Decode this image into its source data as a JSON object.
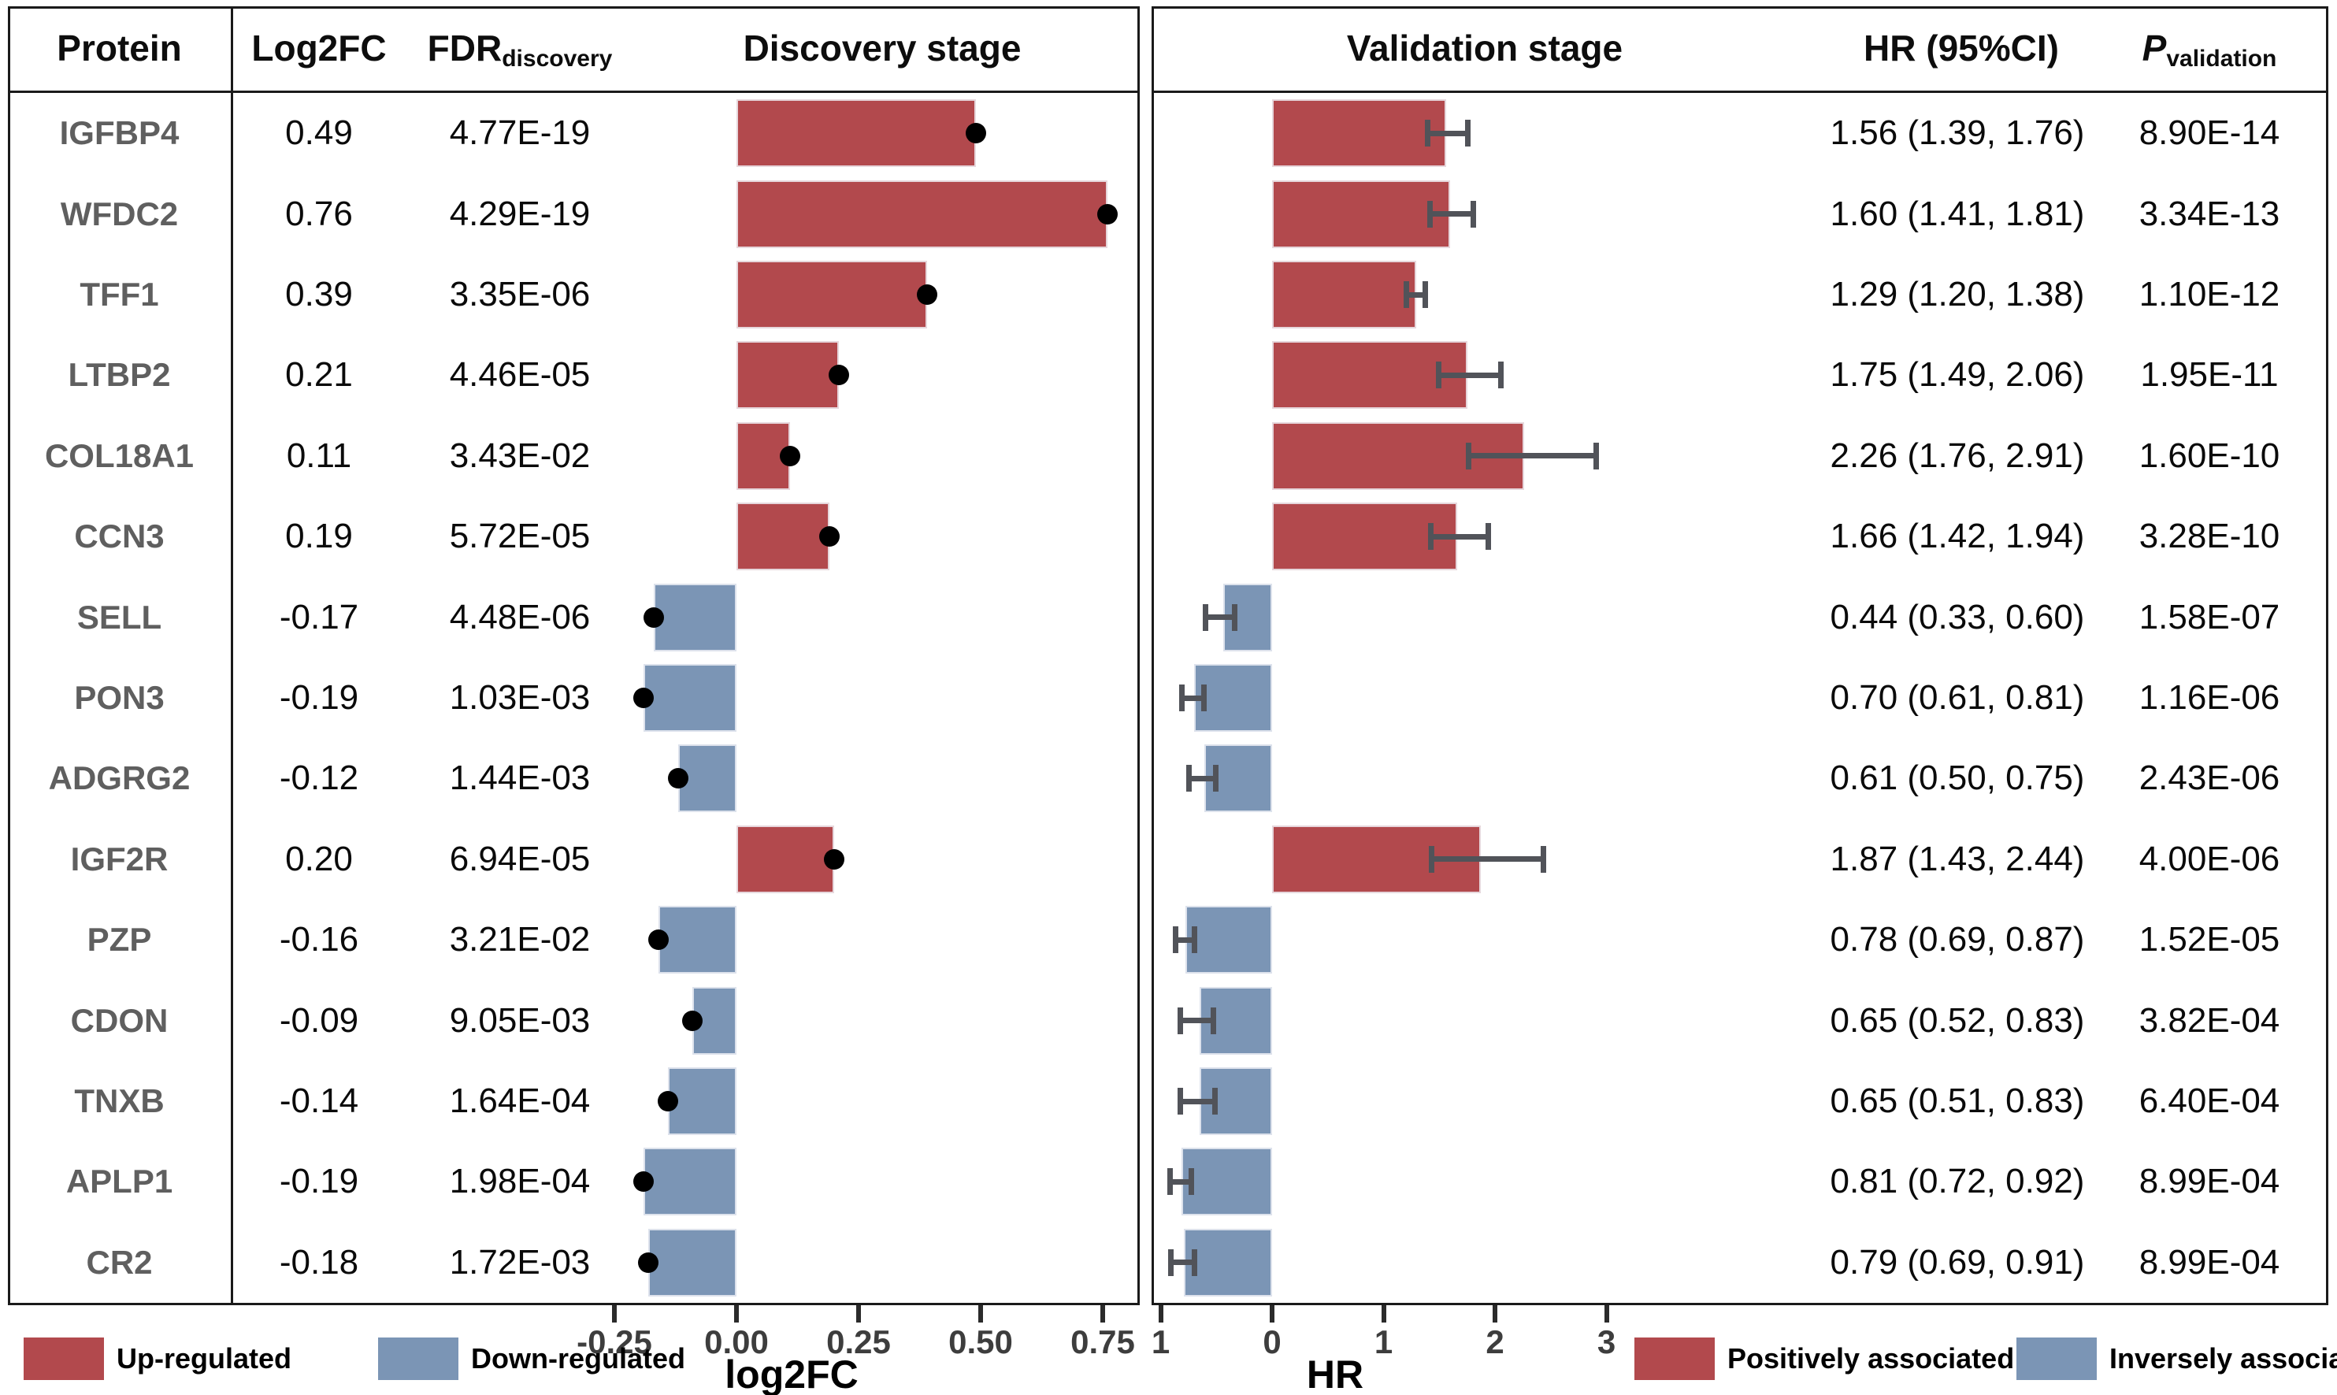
{
  "header": {
    "protein": "Protein",
    "log2fc": "Log2FC",
    "fdr_base": "FDR",
    "fdr_sub": "discovery",
    "discovery": "Discovery stage",
    "validation": "Validation stage",
    "hr_ci": "HR (95%CI)",
    "p_base": "P",
    "p_sub": "validation"
  },
  "colors": {
    "up_bar": "#b2494d",
    "down_bar": "#7b95b5",
    "dot": "#000000",
    "whisker": "#515359",
    "panel_border": "#1a1a1a",
    "protein_text": "#5f5f5f",
    "value_text": "#0a0a0a",
    "tick_text": "#3d3d3d"
  },
  "rows": [
    {
      "protein": "IGFBP4",
      "log2fc": 0.49,
      "log2fc_text": "0.49",
      "fdr": "4.77E-19",
      "hr": 1.56,
      "ci_low": 1.39,
      "ci_high": 1.76,
      "hr_ci_text": "1.56 (1.39, 1.76)",
      "p": "8.90E-14"
    },
    {
      "protein": "WFDC2",
      "log2fc": 0.76,
      "log2fc_text": "0.76",
      "fdr": "4.29E-19",
      "hr": 1.6,
      "ci_low": 1.41,
      "ci_high": 1.81,
      "hr_ci_text": "1.60 (1.41, 1.81)",
      "p": "3.34E-13"
    },
    {
      "protein": "TFF1",
      "log2fc": 0.39,
      "log2fc_text": "0.39",
      "fdr": "3.35E-06",
      "hr": 1.29,
      "ci_low": 1.2,
      "ci_high": 1.38,
      "hr_ci_text": "1.29 (1.20, 1.38)",
      "p": "1.10E-12"
    },
    {
      "protein": "LTBP2",
      "log2fc": 0.21,
      "log2fc_text": "0.21",
      "fdr": "4.46E-05",
      "hr": 1.75,
      "ci_low": 1.49,
      "ci_high": 2.06,
      "hr_ci_text": "1.75 (1.49, 2.06)",
      "p": "1.95E-11"
    },
    {
      "protein": "COL18A1",
      "log2fc": 0.11,
      "log2fc_text": "0.11",
      "fdr": "3.43E-02",
      "hr": 2.26,
      "ci_low": 1.76,
      "ci_high": 2.91,
      "hr_ci_text": "2.26 (1.76, 2.91)",
      "p": "1.60E-10"
    },
    {
      "protein": "CCN3",
      "log2fc": 0.19,
      "log2fc_text": "0.19",
      "fdr": "5.72E-05",
      "hr": 1.66,
      "ci_low": 1.42,
      "ci_high": 1.94,
      "hr_ci_text": "1.66 (1.42, 1.94)",
      "p": "3.28E-10"
    },
    {
      "protein": "SELL",
      "log2fc": -0.17,
      "log2fc_text": "-0.17",
      "fdr": "4.48E-06",
      "hr": 0.44,
      "ci_low": 0.33,
      "ci_high": 0.6,
      "hr_ci_text": "0.44 (0.33, 0.60)",
      "p": "1.58E-07"
    },
    {
      "protein": "PON3",
      "log2fc": -0.19,
      "log2fc_text": "-0.19",
      "fdr": "1.03E-03",
      "hr": 0.7,
      "ci_low": 0.61,
      "ci_high": 0.81,
      "hr_ci_text": "0.70 (0.61, 0.81)",
      "p": "1.16E-06"
    },
    {
      "protein": "ADGRG2",
      "log2fc": -0.12,
      "log2fc_text": "-0.12",
      "fdr": "1.44E-03",
      "hr": 0.61,
      "ci_low": 0.5,
      "ci_high": 0.75,
      "hr_ci_text": "0.61 (0.50, 0.75)",
      "p": "2.43E-06"
    },
    {
      "protein": "IGF2R",
      "log2fc": 0.2,
      "log2fc_text": "0.20",
      "fdr": "6.94E-05",
      "hr": 1.87,
      "ci_low": 1.43,
      "ci_high": 2.44,
      "hr_ci_text": "1.87 (1.43, 2.44)",
      "p": "4.00E-06"
    },
    {
      "protein": "PZP",
      "log2fc": -0.16,
      "log2fc_text": "-0.16",
      "fdr": "3.21E-02",
      "hr": 0.78,
      "ci_low": 0.69,
      "ci_high": 0.87,
      "hr_ci_text": "0.78 (0.69, 0.87)",
      "p": "1.52E-05"
    },
    {
      "protein": "CDON",
      "log2fc": -0.09,
      "log2fc_text": "-0.09",
      "fdr": "9.05E-03",
      "hr": 0.65,
      "ci_low": 0.52,
      "ci_high": 0.83,
      "hr_ci_text": "0.65 (0.52, 0.83)",
      "p": "3.82E-04"
    },
    {
      "protein": "TNXB",
      "log2fc": -0.14,
      "log2fc_text": "-0.14",
      "fdr": "1.64E-04",
      "hr": 0.65,
      "ci_low": 0.51,
      "ci_high": 0.83,
      "hr_ci_text": "0.65 (0.51, 0.83)",
      "p": "6.40E-04"
    },
    {
      "protein": "APLP1",
      "log2fc": -0.19,
      "log2fc_text": "-0.19",
      "fdr": "1.98E-04",
      "hr": 0.81,
      "ci_low": 0.72,
      "ci_high": 0.92,
      "hr_ci_text": "0.81 (0.72, 0.92)",
      "p": "8.99E-04"
    },
    {
      "protein": "CR2",
      "log2fc": -0.18,
      "log2fc_text": "-0.18",
      "fdr": "1.72E-03",
      "hr": 0.79,
      "ci_low": 0.69,
      "ci_high": 0.91,
      "hr_ci_text": "0.79 (0.69, 0.91)",
      "p": "8.99E-04"
    }
  ],
  "axes": {
    "log2fc": {
      "title": "log2FC",
      "ticks": [
        {
          "value": -0.25,
          "label": "-0.25"
        },
        {
          "value": 0,
          "label": "0.00"
        },
        {
          "value": 0.25,
          "label": "0.25"
        },
        {
          "value": 0.5,
          "label": "0.50"
        },
        {
          "value": 0.75,
          "label": "0.75"
        }
      ]
    },
    "hr": {
      "title": "HR",
      "ticks": [
        {
          "value": -1,
          "label": "1"
        },
        {
          "value": 0,
          "label": "0"
        },
        {
          "value": 1,
          "label": "1"
        },
        {
          "value": 2,
          "label": "2"
        },
        {
          "value": 3,
          "label": "3"
        }
      ]
    }
  },
  "legend_discovery": [
    {
      "label": "Up-regulated",
      "color": "#b2494d"
    },
    {
      "label": "Down-regulated",
      "color": "#7b95b5"
    }
  ],
  "legend_validation": [
    {
      "label": "Positively associated",
      "color": "#b2494d"
    },
    {
      "label": "Inversely associated",
      "color": "#7b95b5"
    }
  ],
  "chart_data": [
    {
      "type": "bar",
      "title": "Discovery stage",
      "orientation": "horizontal",
      "categories": [
        "IGFBP4",
        "WFDC2",
        "TFF1",
        "LTBP2",
        "COL18A1",
        "CCN3",
        "SELL",
        "PON3",
        "ADGRG2",
        "IGF2R",
        "PZP",
        "CDON",
        "TNXB",
        "APLP1",
        "CR2"
      ],
      "values": [
        0.49,
        0.76,
        0.39,
        0.21,
        0.11,
        0.19,
        -0.17,
        -0.19,
        -0.12,
        0.2,
        -0.16,
        -0.09,
        -0.14,
        -0.19,
        -0.18
      ],
      "xlabel": "log2FC",
      "ylabel": "",
      "xlim": [
        -0.3,
        0.82
      ],
      "xticks": [
        -0.25,
        0.0,
        0.25,
        0.5,
        0.75
      ],
      "grid": false,
      "point_marker": "black dot at bar end",
      "bar_colors": "red if value>0 (Up-regulated), blue if value<0 (Down-regulated)",
      "legend_position": "bottom-left"
    },
    {
      "type": "bar",
      "title": "Validation stage",
      "orientation": "horizontal",
      "categories": [
        "IGFBP4",
        "WFDC2",
        "TFF1",
        "LTBP2",
        "COL18A1",
        "CCN3",
        "SELL",
        "PON3",
        "ADGRG2",
        "IGF2R",
        "PZP",
        "CDON",
        "TNXB",
        "APLP1",
        "CR2"
      ],
      "series": [
        {
          "name": "HR",
          "values": [
            1.56,
            1.6,
            1.29,
            1.75,
            2.26,
            1.66,
            0.44,
            0.7,
            0.61,
            1.87,
            0.78,
            0.65,
            0.65,
            0.81,
            0.79
          ]
        },
        {
          "name": "CI_low",
          "values": [
            1.39,
            1.41,
            1.2,
            1.49,
            1.76,
            1.42,
            0.33,
            0.61,
            0.5,
            1.43,
            0.69,
            0.52,
            0.51,
            0.72,
            0.69
          ]
        },
        {
          "name": "CI_high",
          "values": [
            1.76,
            1.81,
            1.38,
            2.06,
            2.91,
            1.94,
            0.6,
            0.81,
            0.75,
            2.44,
            0.87,
            0.83,
            0.83,
            0.92,
            0.91
          ]
        }
      ],
      "xlabel": "HR",
      "ylabel": "",
      "xtick_labels": [
        "1",
        "0",
        "1",
        "2",
        "3"
      ],
      "grid": false,
      "error_bars": "capped whiskers spanning 95% CI at bar end",
      "bar_colors": "red if HR>1 (Positively associated), blue if HR<1 (Inversely associated); bars with HR<1 drawn leftward from 0 on mirrored scale",
      "legend_position": "bottom-right"
    }
  ]
}
